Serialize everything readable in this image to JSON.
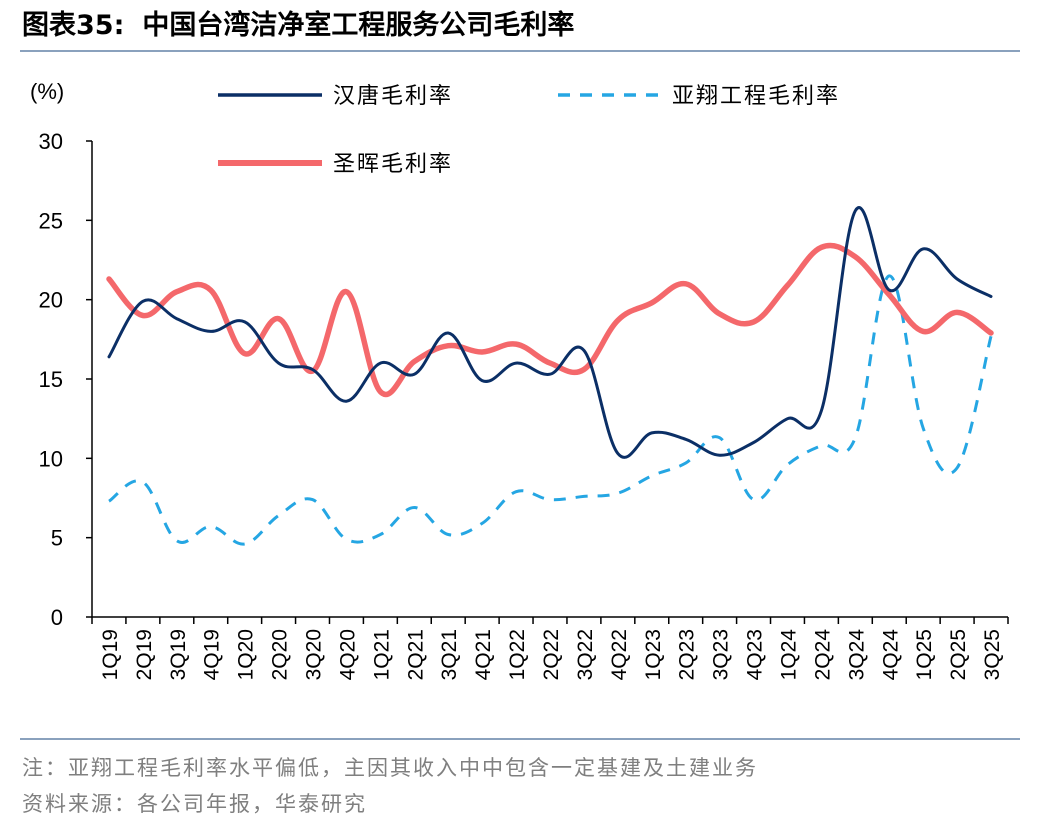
{
  "header": {
    "figure_no": "图表35:",
    "title": "中国台湾洁净室工程服务公司毛利率"
  },
  "footer": {
    "note": "注：亚翔工程毛利率水平偏低，主因其收入中中包含一定基建及土建业务",
    "source": "资料来源：各公司年报，华泰研究"
  },
  "chart_data": {
    "type": "line",
    "ylabel": "(%)",
    "ylim": [
      0,
      30
    ],
    "yticks": [
      0,
      5,
      10,
      15,
      20,
      25,
      30
    ],
    "grid": false,
    "legend_position": "top",
    "categories": [
      "1Q19",
      "2Q19",
      "3Q19",
      "4Q19",
      "1Q20",
      "2Q20",
      "3Q20",
      "4Q20",
      "1Q21",
      "2Q21",
      "3Q21",
      "4Q21",
      "1Q22",
      "2Q22",
      "3Q22",
      "4Q22",
      "1Q23",
      "2Q23",
      "3Q23",
      "4Q23",
      "1Q24",
      "2Q24",
      "3Q24",
      "4Q24",
      "1Q25",
      "2Q25",
      "3Q25"
    ],
    "series": [
      {
        "name": "汉唐毛利率",
        "color": "#0b2f66",
        "style": "solid",
        "values": [
          16.4,
          19.9,
          18.8,
          18.0,
          18.6,
          16.0,
          15.6,
          13.6,
          16.0,
          15.3,
          17.9,
          14.9,
          16.0,
          15.3,
          16.8,
          10.3,
          11.6,
          11.2,
          10.2,
          11.0,
          12.5,
          13.0,
          25.6,
          20.6,
          23.2,
          21.3,
          20.2
        ]
      },
      {
        "name": "亚翔工程毛利率",
        "color": "#25a6e3",
        "style": "dashed",
        "values": [
          7.3,
          8.5,
          4.8,
          5.7,
          4.6,
          6.4,
          7.4,
          4.9,
          5.2,
          6.9,
          5.2,
          5.9,
          7.9,
          7.4,
          7.6,
          7.8,
          8.9,
          9.7,
          11.3,
          7.4,
          9.6,
          10.8,
          11.3,
          21.5,
          11.9,
          9.4,
          17.7
        ]
      },
      {
        "name": "圣晖毛利率",
        "color": "#f4686b",
        "style": "solid",
        "values": [
          21.3,
          19.0,
          20.5,
          20.6,
          16.6,
          18.8,
          15.5,
          20.5,
          14.2,
          16.1,
          17.1,
          16.7,
          17.2,
          16.0,
          15.6,
          18.7,
          19.8,
          21.0,
          19.1,
          18.6,
          20.9,
          23.3,
          22.7,
          20.3,
          18.0,
          19.2,
          17.9
        ]
      }
    ]
  }
}
